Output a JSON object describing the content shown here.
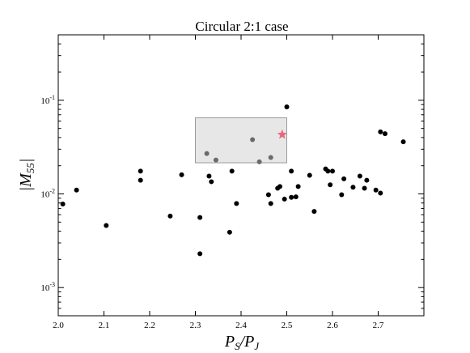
{
  "chart_data": {
    "type": "scatter",
    "title": "Circular 2:1 case",
    "xlabel": {
      "base": "P",
      "sub1": "S",
      "slash": "/",
      "base2": "P",
      "sub2": "J"
    },
    "ylabel": {
      "base": "|M",
      "sub": "55",
      "close": "|"
    },
    "xlim": [
      2.0,
      2.8
    ],
    "ylim": [
      0.0005,
      0.5
    ],
    "yscale": "log",
    "xticks": [
      2.0,
      2.1,
      2.2,
      2.3,
      2.4,
      2.5,
      2.6,
      2.7
    ],
    "xtick_labels": [
      "2.0",
      "2.1",
      "2.2",
      "2.3",
      "2.4",
      "2.5",
      "2.6",
      "2.7"
    ],
    "yticks": [
      {
        "value": 0.1,
        "base": "10",
        "exp": "-1"
      },
      {
        "value": 0.01,
        "base": "10",
        "exp": "-2"
      },
      {
        "value": 0.001,
        "base": "10",
        "exp": "-3"
      }
    ],
    "highlight_region": {
      "x": [
        2.3,
        2.5
      ],
      "y": [
        0.0215,
        0.065
      ],
      "color": "#cfcfcf"
    },
    "grid": false,
    "point_color": "#000000",
    "points": [
      [
        2.01,
        0.0078
      ],
      [
        2.04,
        0.011
      ],
      [
        2.105,
        0.0046
      ],
      [
        2.18,
        0.0175
      ],
      [
        2.18,
        0.014
      ],
      [
        2.245,
        0.0058
      ],
      [
        2.27,
        0.016
      ],
      [
        2.31,
        0.0023
      ],
      [
        2.31,
        0.0056
      ],
      [
        2.325,
        0.027
      ],
      [
        2.33,
        0.0155
      ],
      [
        2.335,
        0.0135
      ],
      [
        2.345,
        0.023
      ],
      [
        2.375,
        0.0039
      ],
      [
        2.38,
        0.0175
      ],
      [
        2.39,
        0.0079
      ],
      [
        2.425,
        0.038
      ],
      [
        2.44,
        0.022
      ],
      [
        2.46,
        0.0098
      ],
      [
        2.465,
        0.0079
      ],
      [
        2.465,
        0.0245
      ],
      [
        2.48,
        0.0115
      ],
      [
        2.485,
        0.012
      ],
      [
        2.495,
        0.0088
      ],
      [
        2.5,
        0.085
      ],
      [
        2.51,
        0.0175
      ],
      [
        2.51,
        0.0092
      ],
      [
        2.52,
        0.0093
      ],
      [
        2.525,
        0.012
      ],
      [
        2.55,
        0.0158
      ],
      [
        2.56,
        0.0065
      ],
      [
        2.585,
        0.0185
      ],
      [
        2.59,
        0.0175
      ],
      [
        2.595,
        0.0125
      ],
      [
        2.6,
        0.0175
      ],
      [
        2.62,
        0.0098
      ],
      [
        2.625,
        0.0145
      ],
      [
        2.645,
        0.0118
      ],
      [
        2.66,
        0.0155
      ],
      [
        2.67,
        0.0115
      ],
      [
        2.675,
        0.014
      ],
      [
        2.695,
        0.011
      ],
      [
        2.705,
        0.046
      ],
      [
        2.705,
        0.0102
      ],
      [
        2.715,
        0.044
      ],
      [
        2.755,
        0.036
      ]
    ],
    "star": {
      "x": 2.49,
      "y": 0.043,
      "color": "#e8687a"
    }
  }
}
